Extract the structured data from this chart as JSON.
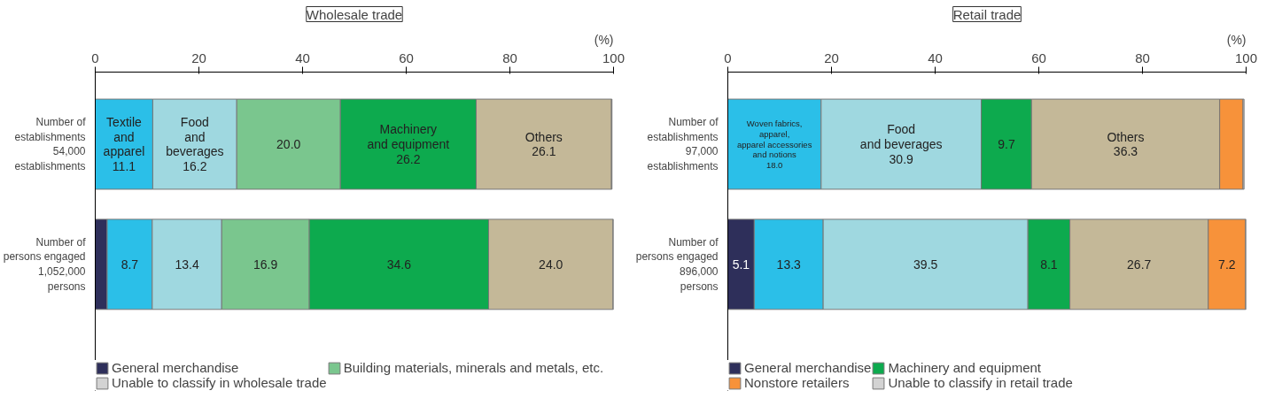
{
  "chart_data": [
    {
      "type": "bar",
      "orientation": "horizontal",
      "stacked": true,
      "title": "Wholesale trade",
      "xlabel": "(%)",
      "xlim": [
        0,
        100
      ],
      "xticks": [
        0,
        20,
        40,
        60,
        80,
        100
      ],
      "grid": false,
      "legend": "bottom left",
      "categories": [
        "Number of\nestablishments\n54,000\nestablishments",
        "Number of\npersons engaged\n1,052,000\npersons"
      ],
      "series": [
        {
          "name": "General merchandise",
          "color": "#2e2f5a",
          "values": [
            null,
            2.3
          ],
          "value_labels": [
            null,
            null
          ]
        },
        {
          "color": "#2bbfe8",
          "values": [
            11.1,
            8.7
          ],
          "value_labels": [
            "Textile\nand\napparel\n11.1",
            "8.7"
          ]
        },
        {
          "color": "#9fd8e0",
          "values": [
            16.2,
            13.4
          ],
          "value_labels": [
            "Food\nand\nbeverages\n16.2",
            "13.4"
          ]
        },
        {
          "name": "Building materials, minerals and metals, etc.",
          "color": "#7ac68e",
          "values": [
            20.0,
            16.9
          ],
          "value_labels": [
            "20.0",
            "16.9"
          ]
        },
        {
          "color": "#0daa4e",
          "values": [
            26.2,
            34.6
          ],
          "value_labels": [
            "Machinery\nand equipment\n26.2",
            "34.6"
          ]
        },
        {
          "color": "#c4b898",
          "values": [
            26.1,
            24.0
          ],
          "value_labels": [
            "Others\n26.1",
            "24.0"
          ]
        },
        {
          "name": "Unable to classify in wholesale trade",
          "color": "#d3d3d3",
          "values": [
            0.1,
            0.1
          ],
          "value_labels": [
            null,
            null
          ]
        }
      ]
    },
    {
      "type": "bar",
      "orientation": "horizontal",
      "stacked": true,
      "title": "Retail trade",
      "xlabel": "(%)",
      "xlim": [
        0,
        100
      ],
      "xticks": [
        0,
        20,
        40,
        60,
        80,
        100
      ],
      "grid": false,
      "legend": "bottom left",
      "categories": [
        "Number of\nestablishments\n97,000\nestablishments",
        "Number of\npersons engaged\n896,000\npersons"
      ],
      "series": [
        {
          "name": "General merchandise",
          "color": "#2e2f5a",
          "values": [
            null,
            5.1
          ],
          "value_labels": [
            null,
            "5.1"
          ]
        },
        {
          "color": "#2bbfe8",
          "values": [
            18.0,
            13.3
          ],
          "value_labels": [
            "Woven fabrics,\napparel,\napparel accessories\nand notions\n18.0",
            "13.3"
          ]
        },
        {
          "color": "#9fd8e0",
          "values": [
            30.9,
            39.5
          ],
          "value_labels": [
            "Food\nand beverages\n30.9",
            "39.5"
          ]
        },
        {
          "name": "Machinery and equipment",
          "color": "#0daa4e",
          "values": [
            9.7,
            8.1
          ],
          "value_labels": [
            "9.7",
            "8.1"
          ]
        },
        {
          "color": "#c4b898",
          "values": [
            36.3,
            26.7
          ],
          "value_labels": [
            "Others\n36.3",
            "26.7"
          ]
        },
        {
          "name": "Nonstore retailers",
          "color": "#f7923a",
          "values": [
            4.5,
            7.2
          ],
          "value_labels": [
            null,
            "7.2"
          ]
        },
        {
          "name": "Unable to classify in retail trade",
          "color": "#d3d3d3",
          "values": [
            0.2,
            0.1
          ],
          "value_labels": [
            null,
            null
          ]
        }
      ]
    }
  ]
}
